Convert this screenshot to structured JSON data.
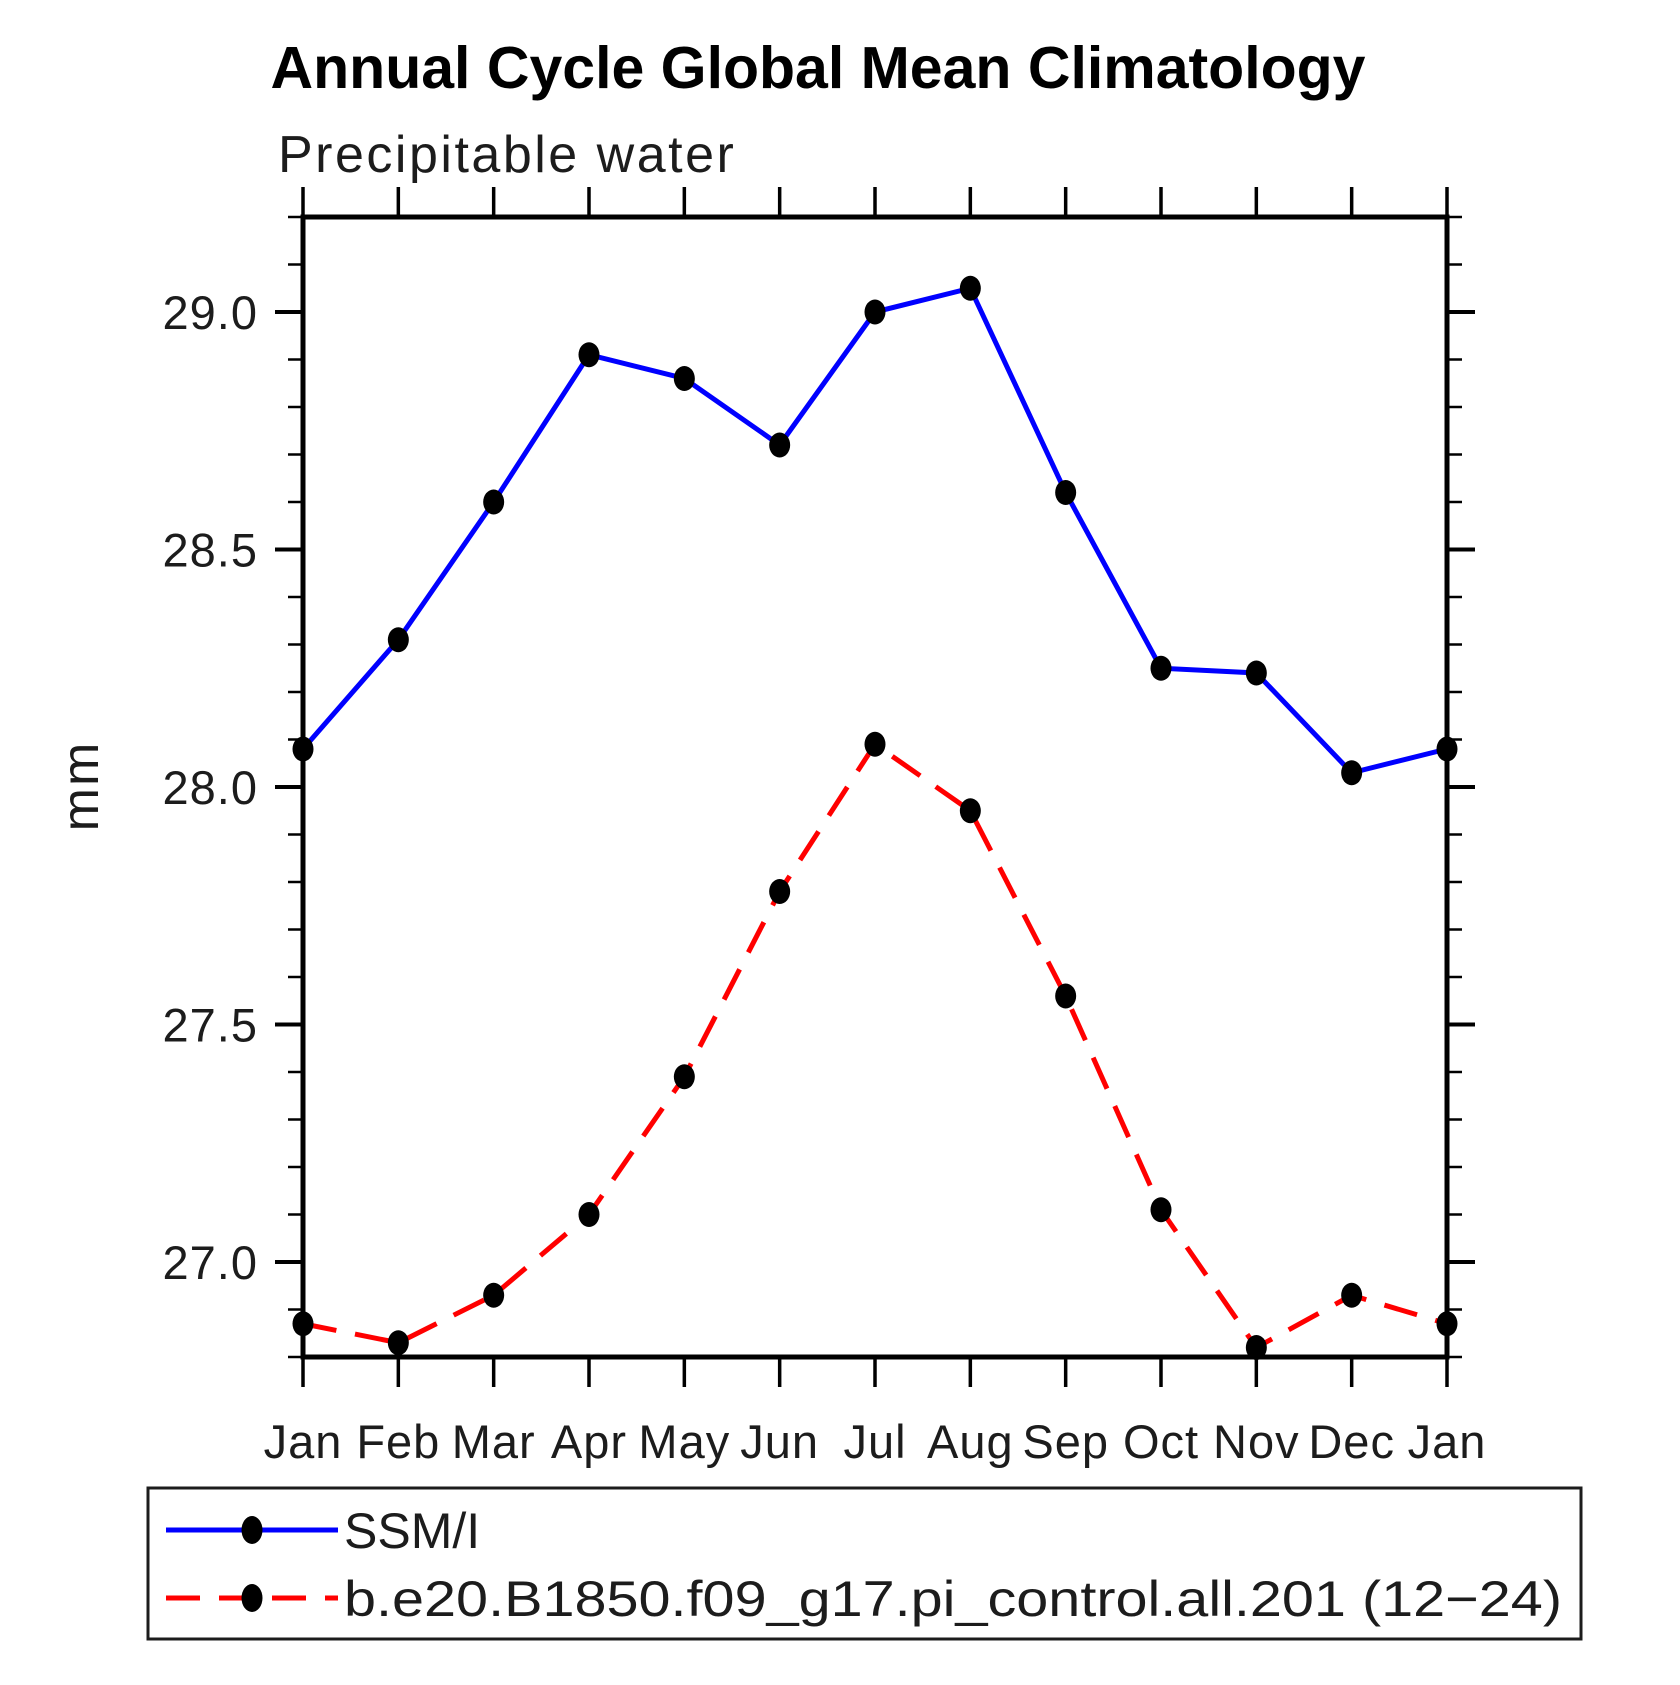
{
  "chart_data": {
    "type": "line",
    "title": "Annual Cycle Global Mean Climatology",
    "subtitle": "Precipitable water",
    "ylabel": "mm",
    "categories": [
      "Jan",
      "Feb",
      "Mar",
      "Apr",
      "May",
      "Jun",
      "Jul",
      "Aug",
      "Sep",
      "Oct",
      "Nov",
      "Dec",
      "Jan"
    ],
    "ylim": [
      26.8,
      29.2
    ],
    "ytick_major": [
      27.0,
      27.5,
      28.0,
      28.5,
      29.0
    ],
    "ytick_minor_step": 0.1,
    "grid": false,
    "legend_position": "bottom",
    "colors": {
      "axis": "#000000",
      "marker": "#000000",
      "ssmi_line": "#0000ff",
      "model_line": "#ff0000"
    },
    "series": [
      {
        "name": "SSM/I",
        "color": "#0000ff",
        "style": "solid",
        "marker": "circle",
        "marker_color": "#000000",
        "values": [
          28.08,
          28.31,
          28.6,
          28.91,
          28.86,
          28.72,
          29.0,
          29.05,
          28.62,
          28.25,
          28.24,
          28.03,
          28.08
        ]
      },
      {
        "name": "b.e20.B1850.f09_g17.pi_control.all.201 (12−24)",
        "color": "#ff0000",
        "style": "dashed",
        "marker": "circle",
        "marker_color": "#000000",
        "values": [
          26.87,
          26.83,
          26.93,
          27.1,
          27.39,
          27.78,
          28.09,
          27.95,
          27.56,
          27.11,
          26.82,
          26.93,
          26.87
        ]
      }
    ]
  }
}
